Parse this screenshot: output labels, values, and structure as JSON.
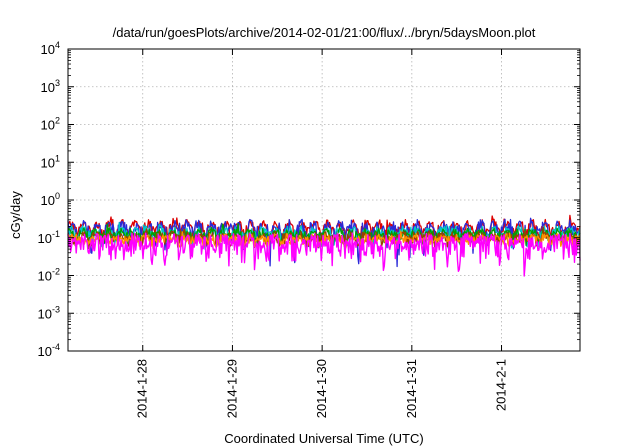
{
  "chart_data": {
    "type": "line",
    "title": "/data/run/goesPlots/archive/2014-02-01/21:00/flux/../bryn/5daysMoon.plot",
    "xlabel": "Coordinated Universal Time (UTC)",
    "ylabel": "cGy/day",
    "yscale": "log",
    "ylim": [
      0.0001,
      10000
    ],
    "y_ticks": [
      {
        "value": 0.0001,
        "base": "10",
        "exp": "-4"
      },
      {
        "value": 0.001,
        "base": "10",
        "exp": "-3"
      },
      {
        "value": 0.01,
        "base": "10",
        "exp": "-2"
      },
      {
        "value": 0.1,
        "base": "10",
        "exp": "-1"
      },
      {
        "value": 1,
        "base": "10",
        "exp": "0"
      },
      {
        "value": 10,
        "base": "10",
        "exp": "1"
      },
      {
        "value": 100,
        "base": "10",
        "exp": "2"
      },
      {
        "value": 1000,
        "base": "10",
        "exp": "3"
      },
      {
        "value": 10000,
        "base": "10",
        "exp": "4"
      }
    ],
    "xlim": [
      "2014-01-27T04:00",
      "2014-02-01T21:00"
    ],
    "x_ticks": [
      {
        "value": "2014-01-28T00:00",
        "label": "2014-1-28"
      },
      {
        "value": "2014-01-29T00:00",
        "label": "2014-1-29"
      },
      {
        "value": "2014-01-30T00:00",
        "label": "2014-1-30"
      },
      {
        "value": "2014-01-31T00:00",
        "label": "2014-1-31"
      },
      {
        "value": "2014-02-01T00:00",
        "label": "2014-2-1"
      }
    ],
    "grid": true,
    "legend": "none",
    "series": [
      {
        "color": "#dd0000",
        "base": 0.19,
        "amp": 0.3,
        "noise": 0.06,
        "dip": false
      },
      {
        "color": "#2a2ad8",
        "base": 0.16,
        "amp": 0.34,
        "noise": 0.09,
        "dip": false
      },
      {
        "color": "#00c8c8",
        "base": 0.13,
        "amp": 0.24,
        "noise": 0.05,
        "dip": false
      },
      {
        "color": "#00a000",
        "base": 0.12,
        "amp": 0.18,
        "noise": 0.04,
        "dip": false
      },
      {
        "color": "#9a3f00",
        "base": 0.1,
        "amp": 0.14,
        "noise": 0.035,
        "dip": false
      },
      {
        "color": "#ff9000",
        "base": 0.09,
        "amp": 0.1,
        "noise": 0.03,
        "dip": false
      },
      {
        "color": "#ff00ff",
        "base": 0.075,
        "amp": 0.12,
        "noise": 0.05,
        "dip": true
      }
    ]
  }
}
